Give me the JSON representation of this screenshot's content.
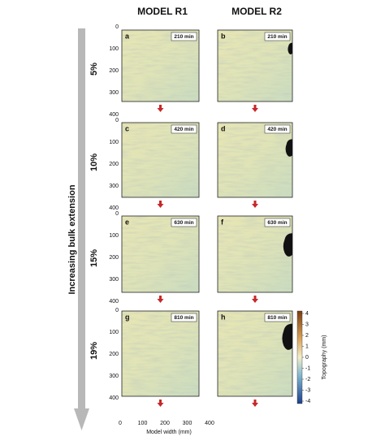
{
  "columns": [
    "MODEL R1",
    "MODEL R2"
  ],
  "side_label": "Increasing bulk extension",
  "rows": [
    {
      "label": "5%",
      "panels": [
        {
          "letter": "a",
          "time": "210 min"
        },
        {
          "letter": "b",
          "time": "210 min"
        }
      ]
    },
    {
      "label": "10%",
      "panels": [
        {
          "letter": "c",
          "time": "420 min"
        },
        {
          "letter": "d",
          "time": "420 min"
        }
      ]
    },
    {
      "label": "15%",
      "panels": [
        {
          "letter": "e",
          "time": "630 min"
        },
        {
          "letter": "f",
          "time": "630 min"
        }
      ]
    },
    {
      "label": "19%",
      "panels": [
        {
          "letter": "g",
          "time": "810 min"
        },
        {
          "letter": "h",
          "time": "810 min"
        }
      ]
    }
  ],
  "y_ticks": [
    0,
    100,
    200,
    300,
    400
  ],
  "x_ticks": [
    0,
    100,
    200,
    300,
    400
  ],
  "x_label": "Model width (mm)",
  "colorbar": {
    "label": "Topography (mm)",
    "ticks": [
      4,
      3,
      2,
      1,
      0,
      -1,
      -2,
      -3,
      -4
    ]
  }
}
